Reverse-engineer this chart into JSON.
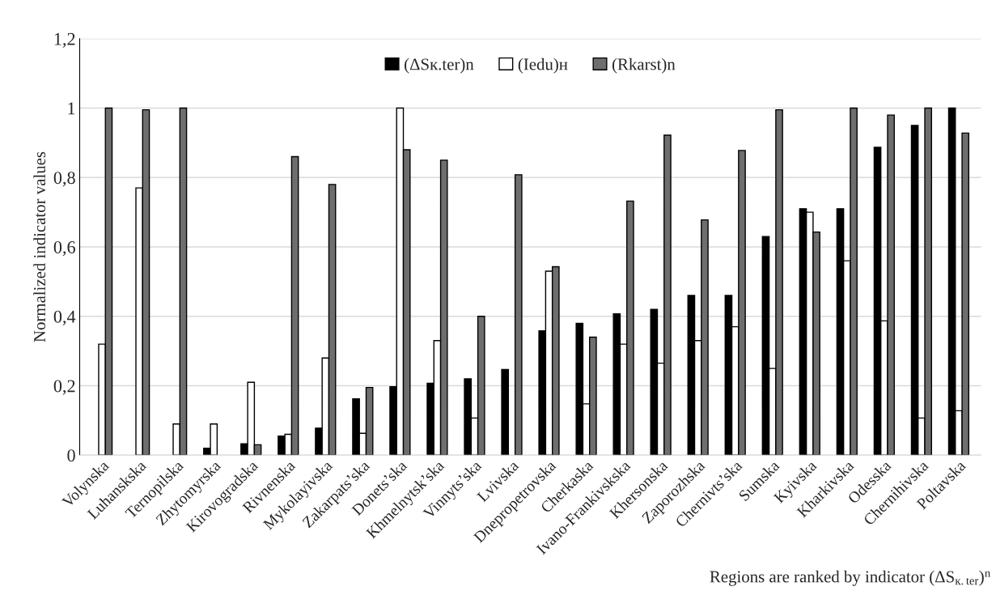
{
  "chart_data": {
    "type": "bar",
    "ylabel": "Normalized indicator values",
    "xlabel": "Regions are ranked by indicator (ΔS$_{к.ter}$)$^{n}$",
    "categories": [
      "Volynska",
      "Luhanskska",
      "Ternopilska",
      "Zhytomyrska",
      "Kirovogradska",
      "Rivnenska",
      "Mykolayivska",
      "Zakarpats’ska",
      "Donets’ska",
      "Khmelnytsk’ska",
      "Vinnyts’ska",
      "Lvivska",
      "Dnepropetrovska",
      "Cherkaska",
      "Ivano-Frankivskska",
      "Khersonska",
      "Zaporozhska",
      "Chernivts’ska",
      "Sumska",
      "Kyivska",
      "Kharkivska",
      "Odesska",
      "Chernihivska",
      "Poltavska"
    ],
    "series": [
      {
        "name": "(ΔSк.ter)n",
        "color": "#000000",
        "values": [
          null,
          null,
          null,
          0.02,
          0.033,
          0.055,
          0.078,
          0.162,
          0.197,
          0.207,
          0.22,
          0.247,
          0.358,
          0.38,
          0.407,
          0.42,
          0.46,
          0.46,
          0.63,
          0.71,
          0.71,
          0.887,
          0.95,
          1.0
        ]
      },
      {
        "name": "(Iedu)н",
        "color": "#ffffff",
        "values": [
          0.32,
          0.77,
          0.09,
          0.09,
          0.21,
          0.06,
          0.28,
          0.063,
          1.0,
          0.33,
          0.107,
          null,
          0.53,
          0.148,
          0.32,
          0.265,
          0.33,
          0.37,
          0.25,
          0.7,
          0.56,
          0.387,
          0.107,
          0.128
        ]
      },
      {
        "name": "(Rkarst)n",
        "color": "#6e6e6e",
        "values": [
          1.0,
          0.995,
          1.0,
          null,
          0.03,
          0.86,
          0.78,
          0.195,
          0.88,
          0.85,
          0.4,
          0.808,
          0.543,
          0.34,
          0.732,
          0.922,
          0.678,
          0.878,
          0.995,
          0.643,
          1.0,
          0.98,
          1.0,
          0.928
        ]
      }
    ],
    "ylim": [
      0,
      1.2
    ],
    "yticks": [
      {
        "value": 0,
        "label": "0"
      },
      {
        "value": 0.2,
        "label": "0,2"
      },
      {
        "value": 0.4,
        "label": "0,4"
      },
      {
        "value": 0.6,
        "label": "0,6"
      },
      {
        "value": 0.8,
        "label": "0,8"
      },
      {
        "value": 1,
        "label": "1"
      },
      {
        "value": 1.2,
        "label": "1,2"
      }
    ],
    "grid": "y",
    "legend": "top"
  }
}
